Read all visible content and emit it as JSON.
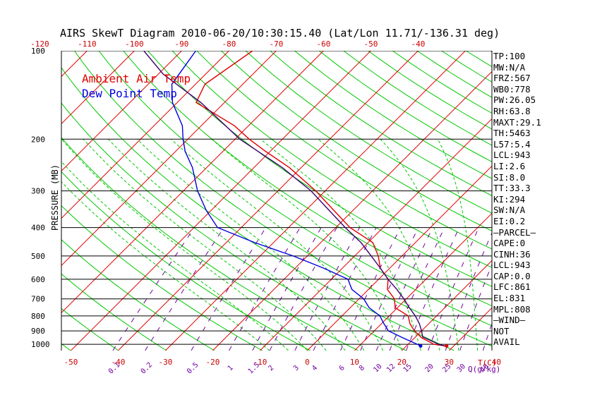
{
  "colors": {
    "temp": "#e00000",
    "dewpoint": "#0000e0",
    "parcel": "#400070",
    "isotherm": "#e00000",
    "dry_adiabat": "#00c800",
    "moist_adiabat": "#00c800",
    "mixing_ratio": "#7000a0",
    "isobar": "#000000",
    "axis_red": "#cc0000",
    "axis_purple": "#7000a0"
  },
  "chart_data": {
    "type": "line",
    "title": "AIRS SkewT Diagram 2010-06-20/10:30:15.40 (Lat/Lon 11.71/-136.31 deg)",
    "ylabel": "PRESSURE (MB)",
    "xlabel": "T(C)",
    "mixing_ratio_label": "Q(g/kg)",
    "y_scale": "log",
    "ylim": [
      1050,
      100
    ],
    "pressure_ticks": [
      100,
      200,
      300,
      400,
      500,
      600,
      700,
      800,
      900,
      1000
    ],
    "pressure_tick_labels": [
      "100",
      "200",
      "300",
      "400",
      "500",
      "600",
      "700",
      "800",
      "900",
      "1000"
    ],
    "top_temp_ticks": [
      "-120",
      "-110",
      "-100",
      "-90",
      "-80",
      "-70",
      "-60",
      "-50",
      "-40"
    ],
    "bottom_temp_ticks": [
      "-50",
      "-40",
      "-30",
      "-20",
      "-10",
      "0",
      "10",
      "20",
      "30",
      "40"
    ],
    "mixing_ratio_ticks": [
      "0.1",
      "0.2",
      "0.5",
      "1",
      "1.5",
      "2",
      "3",
      "4",
      "6",
      "8",
      "10",
      "12",
      "15",
      "20",
      "25",
      "30",
      "40"
    ],
    "legend": [
      {
        "label": "Ambient Air Temp",
        "color": "#e00000"
      },
      {
        "label": "Dew Point Temp",
        "color": "#0000e0"
      }
    ],
    "series": [
      {
        "name": "Ambient Air Temp",
        "p": [
          1013,
          1000,
          950,
          900,
          850,
          800,
          750,
          700,
          650,
          600,
          550,
          500,
          450,
          400,
          350,
          300,
          250,
          220,
          200,
          180,
          150,
          130,
          100
        ],
        "t": [
          28.5,
          25.5,
          21.5,
          18.5,
          16.0,
          14.0,
          9.5,
          7.5,
          4.0,
          2.0,
          -2.0,
          -5.0,
          -9.0,
          -17.0,
          -24.0,
          -32.0,
          -42.5,
          -51.0,
          -57.0,
          -63.0,
          -76.0,
          -78.0,
          -75.0
        ]
      },
      {
        "name": "Dew Point Temp",
        "p": [
          1013,
          1000,
          950,
          900,
          850,
          800,
          750,
          700,
          650,
          600,
          550,
          500,
          450,
          400,
          350,
          300,
          250,
          220,
          200,
          180,
          150,
          130,
          100
        ],
        "t": [
          23.0,
          22.0,
          17.5,
          13.0,
          10.5,
          8.0,
          4.0,
          1.0,
          -3.5,
          -6.5,
          -14.0,
          -23.0,
          -34.0,
          -45.0,
          -51.0,
          -57.0,
          -63.0,
          -68.0,
          -71.0,
          -74.0,
          -81.0,
          -85.0,
          -87.0
        ]
      },
      {
        "name": "Parcel",
        "p": [
          1013,
          1000,
          943,
          900,
          850,
          800,
          750,
          700,
          650,
          600,
          550,
          500,
          450,
          400,
          350,
          300,
          250,
          200,
          150,
          120,
          100
        ],
        "t": [
          28.0,
          26.5,
          21.5,
          20.0,
          18.0,
          15.5,
          12.5,
          9.5,
          6.0,
          2.0,
          -2.0,
          -6.5,
          -11.5,
          -18.0,
          -25.0,
          -33.0,
          -44.0,
          -59.0,
          -75.0,
          -89.0,
          -98.0
        ]
      }
    ]
  },
  "indices": [
    "TP:100",
    "MW:N/A",
    "FRZ:567",
    "WB0:778",
    "PW:26.05",
    "RH:63.8",
    "MAXT:29.1",
    "TH:5463",
    "L57:5.4",
    "LCL:943",
    "LI:2.6",
    "SI:8.0",
    "TT:33.3",
    "KI:294",
    "SW:N/A",
    "EI:0.2",
    "—PARCEL—",
    "CAPE:0",
    "CINH:36",
    "LCL:943",
    "CAP:0.0",
    "LFC:861",
    "EL:831",
    "MPL:808",
    "—WIND—",
    " NOT",
    " AVAIL"
  ]
}
